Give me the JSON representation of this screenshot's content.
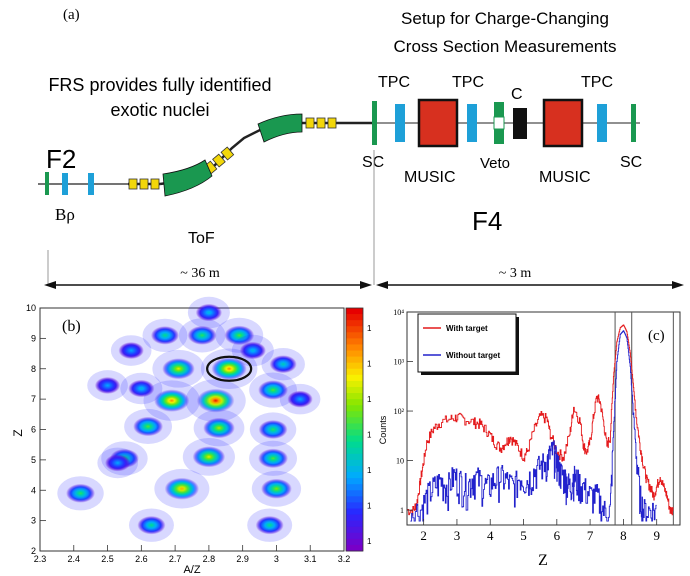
{
  "panel_a": {
    "label": "(a)",
    "setup_title_line1": "Setup for Charge-Changing",
    "setup_title_line2": "Cross Section Measurements",
    "frs_line1": "FRS provides fully identified",
    "frs_line2": "exotic nuclei",
    "f2": "F2",
    "f4": "F4",
    "brho": "Bρ",
    "tof": "ToF",
    "sc_left": "SC",
    "sc_right": "SC",
    "tpc1": "TPC",
    "tpc2": "TPC",
    "tpc3": "TPC",
    "music1": "MUSIC",
    "music2": "MUSIC",
    "veto": "Veto",
    "c_target": "C",
    "dist_left": "~ 36 m",
    "dist_right": "~ 3 m",
    "colors": {
      "magnet": "#1a9850",
      "quad": "#f2d70a",
      "tpc": "#1ea0d8",
      "music": "#d7301f",
      "sc": "#1a9850",
      "target": "#111111"
    }
  },
  "chart_data": [
    {
      "type": "heatmap",
      "label": "(b)",
      "xlabel": "A/Z",
      "ylabel": "Z",
      "xlim": [
        2.3,
        3.2
      ],
      "ylim": [
        2,
        10
      ],
      "xticks": [
        "2.3",
        "2.4",
        "2.5",
        "2.6",
        "2.7",
        "2.8",
        "2.9",
        "3",
        "3.1",
        "3.2"
      ],
      "yticks": [
        "2",
        "3",
        "4",
        "5",
        "6",
        "7",
        "8",
        "9",
        "10"
      ],
      "colorbar_ticks": [
        "1",
        "1",
        "1",
        "1",
        "1",
        "1",
        "1"
      ],
      "highlight": {
        "x": 2.86,
        "y": 8
      },
      "clusters": [
        {
          "x": 2.8,
          "y": 9.85,
          "i": 0.35
        },
        {
          "x": 2.67,
          "y": 9.1,
          "i": 0.45
        },
        {
          "x": 2.78,
          "y": 9.1,
          "i": 0.5
        },
        {
          "x": 2.89,
          "y": 9.1,
          "i": 0.55
        },
        {
          "x": 2.57,
          "y": 8.6,
          "i": 0.3
        },
        {
          "x": 2.93,
          "y": 8.6,
          "i": 0.35
        },
        {
          "x": 3.02,
          "y": 8.15,
          "i": 0.4
        },
        {
          "x": 2.71,
          "y": 8.0,
          "i": 0.7
        },
        {
          "x": 2.86,
          "y": 8.0,
          "i": 0.85
        },
        {
          "x": 2.5,
          "y": 7.45,
          "i": 0.3
        },
        {
          "x": 2.6,
          "y": 7.35,
          "i": 0.35
        },
        {
          "x": 2.99,
          "y": 7.3,
          "i": 0.55
        },
        {
          "x": 2.69,
          "y": 6.95,
          "i": 0.85
        },
        {
          "x": 2.82,
          "y": 6.95,
          "i": 0.98
        },
        {
          "x": 3.07,
          "y": 7.0,
          "i": 0.3
        },
        {
          "x": 2.62,
          "y": 6.1,
          "i": 0.55
        },
        {
          "x": 2.83,
          "y": 6.05,
          "i": 0.65
        },
        {
          "x": 2.99,
          "y": 6.0,
          "i": 0.5
        },
        {
          "x": 2.55,
          "y": 5.05,
          "i": 0.5
        },
        {
          "x": 2.8,
          "y": 5.1,
          "i": 0.7
        },
        {
          "x": 2.99,
          "y": 5.05,
          "i": 0.55
        },
        {
          "x": 2.53,
          "y": 4.9,
          "i": 0.3
        },
        {
          "x": 2.42,
          "y": 3.9,
          "i": 0.5
        },
        {
          "x": 2.72,
          "y": 4.05,
          "i": 0.8
        },
        {
          "x": 3.0,
          "y": 4.05,
          "i": 0.6
        },
        {
          "x": 2.63,
          "y": 2.85,
          "i": 0.45
        },
        {
          "x": 2.98,
          "y": 2.85,
          "i": 0.45
        }
      ]
    },
    {
      "type": "line",
      "label": "(c)",
      "xlabel": "Z",
      "ylabel": "Counts",
      "xlim": [
        1.5,
        9.7
      ],
      "ylim": [
        0.5,
        10000
      ],
      "yscale": "log",
      "xticks": [
        "2",
        "3",
        "4",
        "5",
        "6",
        "7",
        "8",
        "9"
      ],
      "yticks": [
        "1",
        "10",
        "10²",
        "10³",
        "10⁴"
      ],
      "vlines": [
        7.75,
        8.25,
        9.5
      ],
      "legend": "top-left",
      "series": [
        {
          "name": "With target",
          "color": "#e41a1c",
          "x": [
            1.5,
            1.7,
            1.8,
            1.9,
            2.0,
            2.1,
            2.3,
            2.5,
            2.8,
            3.0,
            3.2,
            3.5,
            3.7,
            3.9,
            4.1,
            4.3,
            4.5,
            4.6,
            4.8,
            5.0,
            5.1,
            5.3,
            5.5,
            5.7,
            5.8,
            6.0,
            6.2,
            6.4,
            6.5,
            6.7,
            6.8,
            6.9,
            7.0,
            7.1,
            7.2,
            7.3,
            7.4,
            7.5,
            7.6,
            7.7,
            7.8,
            7.9,
            8.0,
            8.1,
            8.2,
            8.3,
            8.4,
            8.5,
            8.6,
            8.7,
            8.8,
            8.9,
            9.0,
            9.1,
            9.2,
            9.3,
            9.4,
            9.5
          ],
          "y": [
            1,
            1,
            1.5,
            4,
            10,
            25,
            45,
            60,
            70,
            75,
            70,
            60,
            55,
            40,
            25,
            18,
            25,
            30,
            20,
            12,
            15,
            40,
            80,
            70,
            35,
            15,
            12,
            40,
            120,
            60,
            20,
            15,
            25,
            80,
            200,
            150,
            60,
            20,
            30,
            500,
            2500,
            4800,
            5500,
            4000,
            1500,
            300,
            60,
            20,
            8,
            4,
            3,
            2,
            3,
            5,
            3,
            2,
            1,
            1
          ]
        },
        {
          "name": "Without target",
          "color": "#2222cc",
          "x": [
            1.6,
            1.9,
            2.1,
            2.3,
            2.5,
            2.7,
            2.9,
            3.1,
            3.3,
            3.5,
            3.7,
            3.9,
            4.1,
            4.3,
            4.5,
            4.7,
            4.9,
            5.1,
            5.3,
            5.5,
            5.7,
            5.8,
            5.9,
            6.0,
            6.1,
            6.2,
            6.3,
            6.4,
            6.5,
            6.6,
            6.8,
            7.0,
            7.2,
            7.4,
            7.6,
            7.7,
            7.8,
            7.9,
            8.0,
            8.1,
            8.2,
            8.3,
            8.4,
            8.5,
            8.6,
            8.8,
            9.0
          ],
          "y": [
            1,
            1,
            2,
            3,
            4,
            3,
            5,
            4,
            3,
            5,
            4,
            3,
            4,
            5,
            4,
            3,
            5,
            4,
            6,
            8,
            10,
            14,
            16,
            10,
            6,
            5,
            4,
            3,
            5,
            4,
            3,
            2,
            2,
            1,
            1,
            40,
            1000,
            3500,
            4200,
            3000,
            800,
            80,
            10,
            2,
            1,
            1,
            1
          ]
        }
      ]
    }
  ]
}
